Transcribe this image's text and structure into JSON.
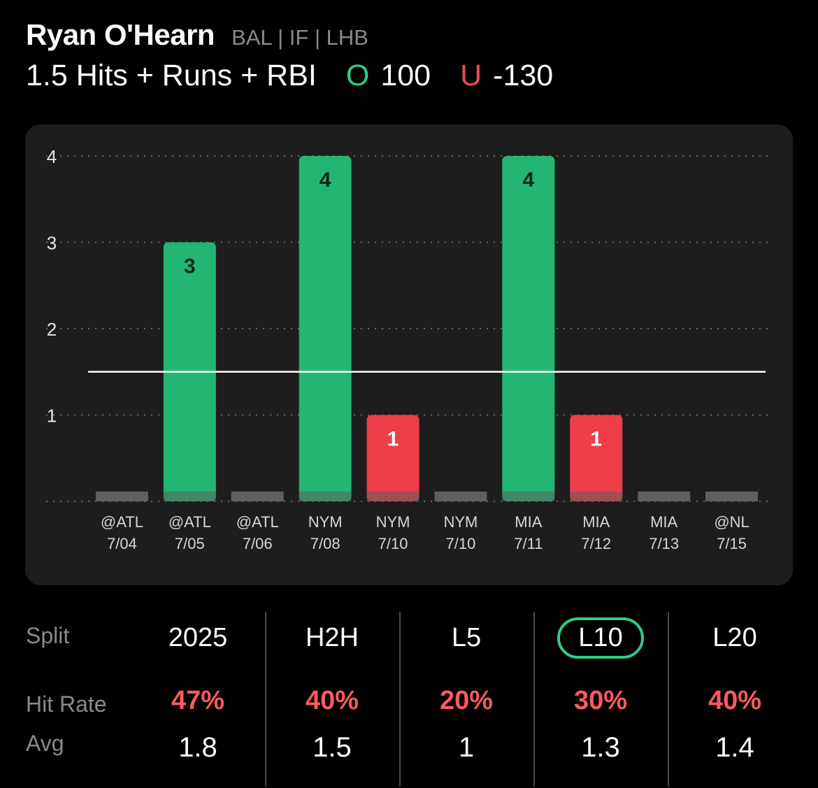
{
  "header": {
    "player_name": "Ryan O'Hearn",
    "player_meta": "BAL | IF | LHB",
    "prop_label": "1.5 Hits + Runs + RBI",
    "over_key": "O",
    "over_odds": "100",
    "under_key": "U",
    "under_odds": "-130"
  },
  "colors": {
    "over": "#22b573",
    "under": "#ee3e4a",
    "zero_bar": "#5f5f5f",
    "card_bg": "#1d1d1d",
    "hit_rate": "#f75a5f"
  },
  "chart_data": {
    "type": "bar",
    "title": "",
    "xlabel": "",
    "ylabel": "",
    "categories": [
      {
        "opp": "@ATL",
        "date": "7/04"
      },
      {
        "opp": "@ATL",
        "date": "7/05"
      },
      {
        "opp": "@ATL",
        "date": "7/06"
      },
      {
        "opp": "NYM",
        "date": "7/08"
      },
      {
        "opp": "NYM",
        "date": "7/10"
      },
      {
        "opp": "NYM",
        "date": "7/10"
      },
      {
        "opp": "MIA",
        "date": "7/11"
      },
      {
        "opp": "MIA",
        "date": "7/12"
      },
      {
        "opp": "MIA",
        "date": "7/13"
      },
      {
        "opp": "@NL",
        "date": "7/15"
      }
    ],
    "values": [
      0,
      3,
      0,
      4,
      1,
      0,
      4,
      1,
      0,
      0
    ],
    "line": 1.5,
    "ylim": [
      0,
      4
    ],
    "yticks": [
      "1",
      "2",
      "3",
      "4"
    ],
    "grid": true
  },
  "splits": {
    "labels": {
      "split": "Split",
      "hit_rate": "Hit Rate",
      "avg": "Avg"
    },
    "columns": [
      {
        "name": "2025",
        "hit_rate": "47%",
        "avg": "1.8",
        "active": false
      },
      {
        "name": "H2H",
        "hit_rate": "40%",
        "avg": "1.5",
        "active": false
      },
      {
        "name": "L5",
        "hit_rate": "20%",
        "avg": "1",
        "active": false
      },
      {
        "name": "L10",
        "hit_rate": "30%",
        "avg": "1.3",
        "active": true
      },
      {
        "name": "L20",
        "hit_rate": "40%",
        "avg": "1.4",
        "active": false
      }
    ]
  }
}
